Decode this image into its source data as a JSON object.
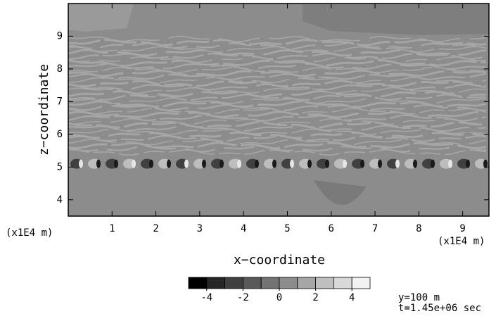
{
  "chart_data": {
    "type": "contour",
    "x_label": "x−coordinate",
    "y_label": "z−coordinate",
    "x_unit": "(x1E4 m)",
    "y_unit": "(x1E4 m)",
    "xlim": [
      0,
      9.6
    ],
    "xticks": [
      1,
      2,
      3,
      4,
      5,
      6,
      7,
      8,
      9
    ],
    "ylim": [
      3.5,
      10
    ],
    "yticks": [
      4,
      5,
      6,
      7,
      8,
      9
    ],
    "colorbar": {
      "levels": [
        -5,
        -4,
        -3,
        -2,
        -1,
        0,
        1,
        2,
        3,
        4,
        5
      ],
      "ticks": [
        -4,
        -2,
        0,
        2,
        4
      ],
      "colors": [
        "#000000",
        "#262626",
        "#404040",
        "#595959",
        "#737373",
        "#8c8c8c",
        "#a6a6a6",
        "#bfbfbf",
        "#d9d9d9",
        "#f2f2f2"
      ]
    },
    "annotations": [
      "y=100 m",
      "t=1.45e+06 sec"
    ]
  }
}
